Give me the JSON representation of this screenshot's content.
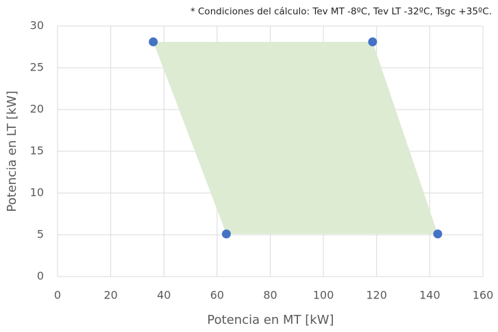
{
  "chart_data": {
    "type": "scatter",
    "annotation": "* Condiciones del cálculo:  Tev MT -8ºC, Tev LT -32ºC, Tsgc +35ºC.",
    "x_label": "Potencia en MT [kW]",
    "y_label": "Potencia en LT [kW]",
    "x": [
      36,
      118.5,
      143,
      63.5
    ],
    "values": [
      28.1,
      28.1,
      5.1,
      5.1
    ],
    "color": "#4472c4",
    "fill_color": "#dcebd2",
    "xlim": [
      0,
      160
    ],
    "xticks": [
      0,
      20,
      40,
      60,
      80,
      100,
      120,
      140,
      160
    ],
    "ylim": [
      0,
      30
    ],
    "yticks": [
      0,
      5,
      10,
      15,
      20,
      25,
      30
    ],
    "grid": true
  }
}
